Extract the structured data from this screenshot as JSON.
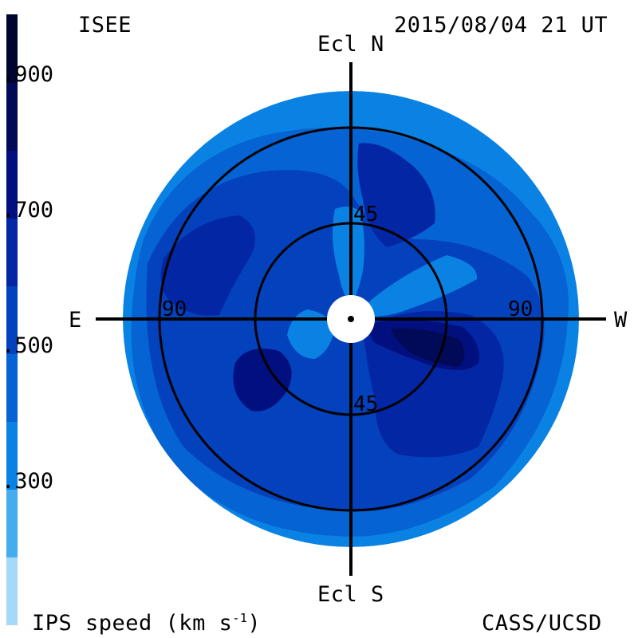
{
  "header": {
    "org": "ISEE",
    "datetime": "2015/08/04 21 UT"
  },
  "footer": {
    "quantity": "IPS speed (km s",
    "quantity_exponent": "-1",
    "quantity_close": ")",
    "credit": "CASS/UCSD"
  },
  "colorbar": {
    "ticks": [
      ".900",
      ".700",
      ".500",
      ".300"
    ],
    "colors": [
      "#a6d8f7",
      "#45acf0",
      "#0a82e4",
      "#0563d3",
      "#0441bd",
      "#0327a4",
      "#020f7e",
      "#010a56",
      "#00052f"
    ]
  },
  "map": {
    "north_label": "Ecl N",
    "south_label": "Ecl S",
    "east_label": "E",
    "west_label": "W",
    "ring_labels": {
      "north_45": "45",
      "south_45": "45",
      "east_90": "90",
      "west_90": "90"
    },
    "colors": {
      "outer": "#0a82e4",
      "mid": "#0563d3",
      "base": "#0441bd",
      "dark": "#0327a4",
      "darker": "#020f7e",
      "darkest": "#010a56",
      "light": "#0a82e4"
    }
  }
}
